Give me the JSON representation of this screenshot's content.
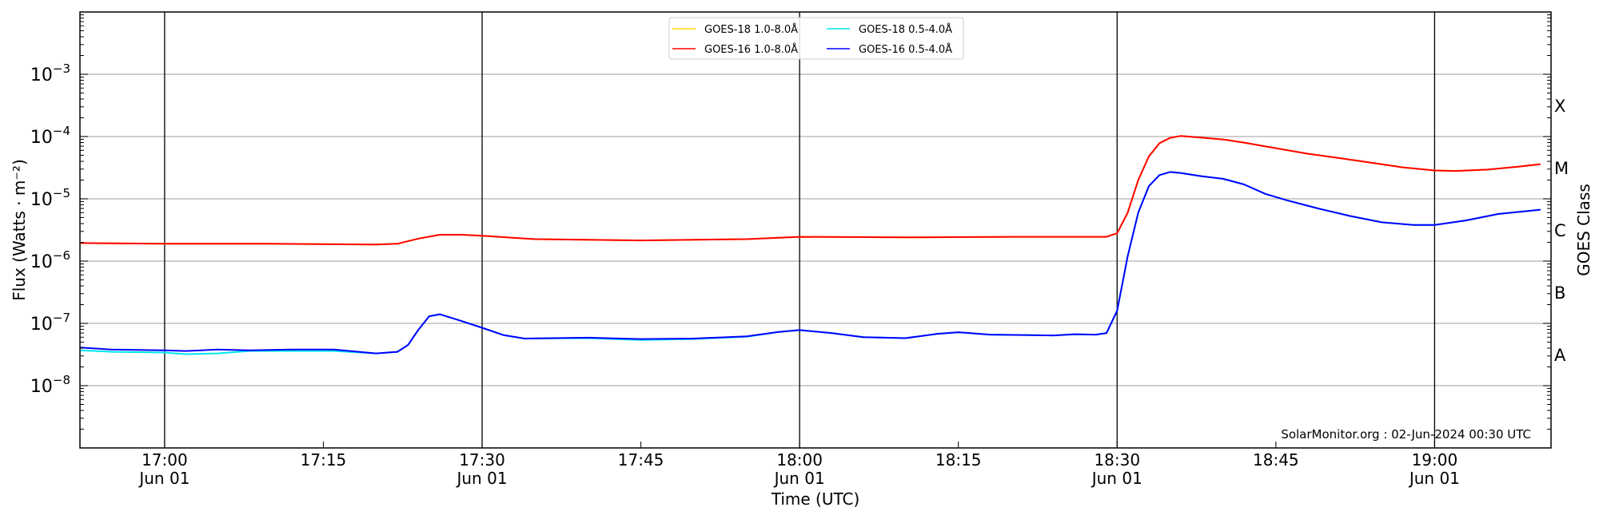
{
  "chart_data": {
    "type": "line",
    "xlabel": "Time (UTC)",
    "ylabel": "Flux (Watts · m⁻²)",
    "ylabel_right": "GOES Class",
    "yscale": "log",
    "xlim": [
      "16:52",
      "19:11"
    ],
    "ylim": [
      1e-09,
      0.01
    ],
    "y_ticks": [
      {
        "value": 0.001,
        "label": "10",
        "exp": "−3"
      },
      {
        "value": 0.0001,
        "label": "10",
        "exp": "−4"
      },
      {
        "value": 1e-05,
        "label": "10",
        "exp": "−5"
      },
      {
        "value": 1e-06,
        "label": "10",
        "exp": "−6"
      },
      {
        "value": 1e-07,
        "label": "10",
        "exp": "−7"
      },
      {
        "value": 1e-08,
        "label": "10",
        "exp": "−8"
      }
    ],
    "x_ticks": [
      {
        "time": "17:00",
        "label": "17:00",
        "date": "Jun 01",
        "major_line": true
      },
      {
        "time": "17:15",
        "label": "17:15",
        "date": "",
        "major_line": false
      },
      {
        "time": "17:30",
        "label": "17:30",
        "date": "Jun 01",
        "major_line": true
      },
      {
        "time": "17:45",
        "label": "17:45",
        "date": "",
        "major_line": false
      },
      {
        "time": "18:00",
        "label": "18:00",
        "date": "Jun 01",
        "major_line": true
      },
      {
        "time": "18:15",
        "label": "18:15",
        "date": "",
        "major_line": false
      },
      {
        "time": "18:30",
        "label": "18:30",
        "date": "Jun 01",
        "major_line": true
      },
      {
        "time": "18:45",
        "label": "18:45",
        "date": "",
        "major_line": false
      },
      {
        "time": "19:00",
        "label": "19:00",
        "date": "Jun 01",
        "major_line": true
      }
    ],
    "goes_classes": [
      {
        "label": "X",
        "value": 0.000316
      },
      {
        "label": "M",
        "value": 3.16e-05
      },
      {
        "label": "C",
        "value": 3.16e-06
      },
      {
        "label": "B",
        "value": 3.16e-07
      },
      {
        "label": "A",
        "value": 3.16e-08
      }
    ],
    "grid": "horizontal at decades",
    "legend_placement": "top-center",
    "annotation": "SolarMonitor.org : 02-Jun-2024 00:30 UTC",
    "series": [
      {
        "name": "GOES-18 1.0-8.0Å",
        "color": "#ffd700",
        "x": [
          "16:52",
          "17:00",
          "17:10",
          "17:20",
          "17:22",
          "17:24",
          "17:26",
          "17:28",
          "17:30",
          "17:35",
          "17:45",
          "17:55",
          "18:00",
          "18:10",
          "18:20",
          "18:29",
          "18:30",
          "18:31",
          "18:32",
          "18:33",
          "18:34",
          "18:35",
          "18:36",
          "18:38",
          "18:40",
          "18:42",
          "18:45",
          "18:48",
          "18:51",
          "18:54",
          "18:57",
          "19:00",
          "19:02",
          "19:05",
          "19:08",
          "19:10"
        ],
        "y": [
          1.95e-06,
          1.9e-06,
          1.9e-06,
          1.85e-06,
          1.9e-06,
          2.3e-06,
          2.65e-06,
          2.65e-06,
          2.55e-06,
          2.25e-06,
          2.15e-06,
          2.25e-06,
          2.45e-06,
          2.4e-06,
          2.45e-06,
          2.45e-06,
          2.8e-06,
          6e-06,
          2e-05,
          4.8e-05,
          7.8e-05,
          9.5e-05,
          0.000102,
          9.6e-05,
          9e-05,
          8e-05,
          6.5e-05,
          5.3e-05,
          4.5e-05,
          3.8e-05,
          3.2e-05,
          2.85e-05,
          2.8e-05,
          2.95e-05,
          3.3e-05,
          3.6e-05
        ]
      },
      {
        "name": "GOES-16 1.0-8.0Å",
        "color": "#ff0000",
        "x": [
          "16:52",
          "17:00",
          "17:10",
          "17:20",
          "17:22",
          "17:24",
          "17:26",
          "17:28",
          "17:30",
          "17:35",
          "17:45",
          "17:55",
          "18:00",
          "18:10",
          "18:20",
          "18:29",
          "18:30",
          "18:31",
          "18:32",
          "18:33",
          "18:34",
          "18:35",
          "18:36",
          "18:38",
          "18:40",
          "18:42",
          "18:45",
          "18:48",
          "18:51",
          "18:54",
          "18:57",
          "19:00",
          "19:02",
          "19:05",
          "19:08",
          "19:10"
        ],
        "y": [
          1.95e-06,
          1.9e-06,
          1.9e-06,
          1.85e-06,
          1.9e-06,
          2.3e-06,
          2.65e-06,
          2.65e-06,
          2.55e-06,
          2.25e-06,
          2.15e-06,
          2.25e-06,
          2.45e-06,
          2.4e-06,
          2.45e-06,
          2.45e-06,
          2.8e-06,
          6e-06,
          2e-05,
          4.8e-05,
          7.8e-05,
          9.5e-05,
          0.000102,
          9.6e-05,
          9e-05,
          8e-05,
          6.5e-05,
          5.3e-05,
          4.5e-05,
          3.8e-05,
          3.2e-05,
          2.85e-05,
          2.8e-05,
          2.95e-05,
          3.3e-05,
          3.6e-05
        ]
      },
      {
        "name": "GOES-18 0.5-4.0Å",
        "color": "#00e5ee",
        "x": [
          "16:52",
          "16:55",
          "17:00",
          "17:02",
          "17:05",
          "17:08",
          "17:12",
          "17:16",
          "17:20",
          "17:22",
          "17:23",
          "17:24",
          "17:25",
          "17:26",
          "17:28",
          "17:30",
          "17:32",
          "17:34",
          "17:40",
          "17:45",
          "17:50",
          "17:55",
          "17:58",
          "18:00",
          "18:03",
          "18:06",
          "18:10",
          "18:13",
          "18:15",
          "18:18",
          "18:24",
          "18:26",
          "18:28",
          "18:29",
          "18:30",
          "18:31",
          "18:32",
          "18:33",
          "18:34",
          "18:35",
          "18:36",
          "18:38",
          "18:40",
          "18:42",
          "18:44",
          "18:46",
          "18:49",
          "18:52",
          "18:55",
          "18:58",
          "19:00",
          "19:03",
          "19:06",
          "19:10"
        ],
        "y": [
          3.7e-08,
          3.5e-08,
          3.4e-08,
          3.2e-08,
          3.3e-08,
          3.6e-08,
          3.6e-08,
          3.6e-08,
          3.3e-08,
          3.5e-08,
          4.5e-08,
          8e-08,
          1.3e-07,
          1.4e-07,
          1.1e-07,
          8.5e-08,
          6.5e-08,
          5.7e-08,
          5.8e-08,
          5.4e-08,
          5.6e-08,
          6.1e-08,
          7.3e-08,
          7.8e-08,
          7e-08,
          6e-08,
          5.8e-08,
          6.8e-08,
          7.2e-08,
          6.6e-08,
          6.4e-08,
          6.7e-08,
          6.6e-08,
          7e-08,
          1.6e-07,
          1.2e-06,
          6e-06,
          1.6e-05,
          2.4e-05,
          2.7e-05,
          2.6e-05,
          2.3e-05,
          2.1e-05,
          1.7e-05,
          1.2e-05,
          9.5e-06,
          7e-06,
          5.3e-06,
          4.2e-06,
          3.8e-06,
          3.8e-06,
          4.5e-06,
          5.7e-06,
          6.7e-06
        ]
      },
      {
        "name": "GOES-16 0.5-4.0Å",
        "color": "#0000ff",
        "x": [
          "16:52",
          "16:55",
          "17:00",
          "17:02",
          "17:05",
          "17:08",
          "17:12",
          "17:16",
          "17:20",
          "17:22",
          "17:23",
          "17:24",
          "17:25",
          "17:26",
          "17:28",
          "17:30",
          "17:32",
          "17:34",
          "17:40",
          "17:45",
          "17:50",
          "17:55",
          "17:58",
          "18:00",
          "18:03",
          "18:06",
          "18:10",
          "18:13",
          "18:15",
          "18:18",
          "18:24",
          "18:26",
          "18:28",
          "18:29",
          "18:30",
          "18:31",
          "18:32",
          "18:33",
          "18:34",
          "18:35",
          "18:36",
          "18:38",
          "18:40",
          "18:42",
          "18:44",
          "18:46",
          "18:49",
          "18:52",
          "18:55",
          "18:58",
          "19:00",
          "19:03",
          "19:06",
          "19:10"
        ],
        "y": [
          4.1e-08,
          3.8e-08,
          3.7e-08,
          3.6e-08,
          3.8e-08,
          3.7e-08,
          3.8e-08,
          3.8e-08,
          3.3e-08,
          3.5e-08,
          4.5e-08,
          8e-08,
          1.3e-07,
          1.4e-07,
          1.1e-07,
          8.5e-08,
          6.5e-08,
          5.7e-08,
          5.9e-08,
          5.6e-08,
          5.7e-08,
          6.2e-08,
          7.3e-08,
          7.8e-08,
          7e-08,
          6e-08,
          5.8e-08,
          6.8e-08,
          7.2e-08,
          6.6e-08,
          6.4e-08,
          6.7e-08,
          6.6e-08,
          7e-08,
          1.6e-07,
          1.2e-06,
          6e-06,
          1.6e-05,
          2.4e-05,
          2.7e-05,
          2.6e-05,
          2.3e-05,
          2.1e-05,
          1.7e-05,
          1.2e-05,
          9.5e-06,
          7e-06,
          5.3e-06,
          4.2e-06,
          3.8e-06,
          3.8e-06,
          4.5e-06,
          5.7e-06,
          6.7e-06
        ]
      }
    ]
  }
}
